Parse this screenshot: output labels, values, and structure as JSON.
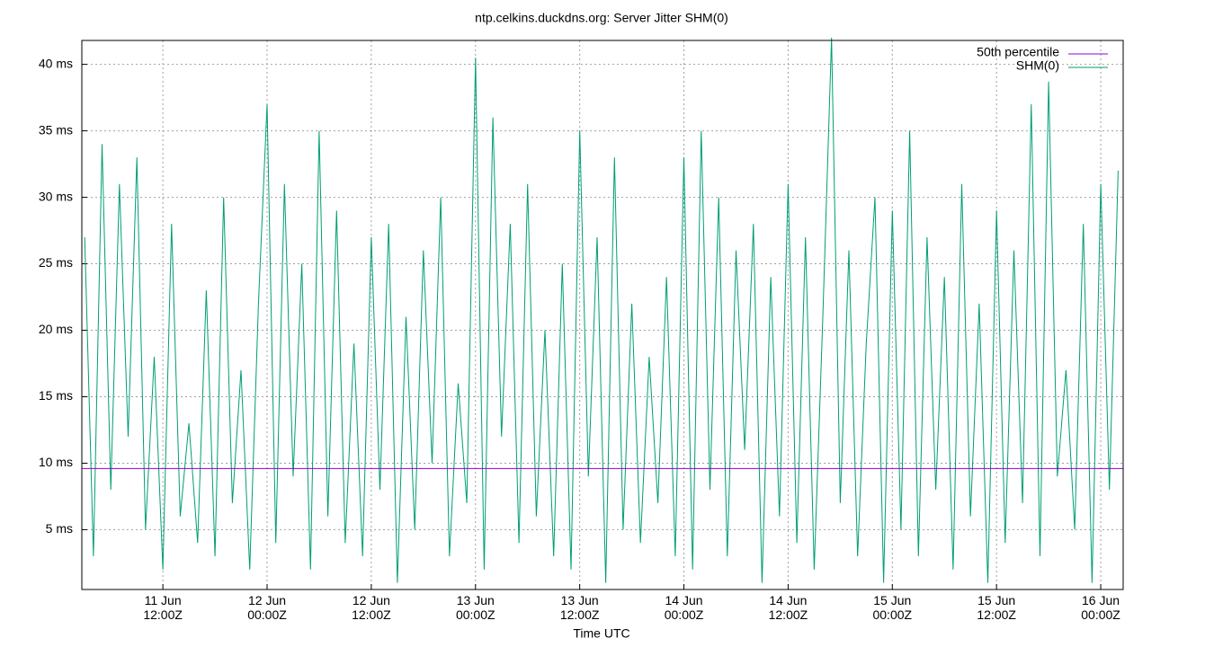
{
  "chart_data": {
    "type": "line",
    "title": "ntp.celkins.duckdns.org: Server Jitter SHM(0)",
    "xlabel": "Time UTC",
    "x": [
      "11 Jun 03:00Z",
      "11 Jun 04:00Z",
      "11 Jun 05:00Z",
      "11 Jun 06:00Z",
      "11 Jun 07:00Z",
      "11 Jun 08:00Z",
      "11 Jun 09:00Z",
      "11 Jun 10:00Z",
      "11 Jun 11:00Z",
      "11 Jun 12:00Z",
      "11 Jun 13:00Z",
      "11 Jun 14:00Z",
      "11 Jun 15:00Z",
      "11 Jun 16:00Z",
      "11 Jun 17:00Z",
      "11 Jun 18:00Z",
      "11 Jun 19:00Z",
      "11 Jun 20:00Z",
      "11 Jun 21:00Z",
      "11 Jun 22:00Z",
      "11 Jun 23:00Z",
      "12 Jun 00:00Z",
      "12 Jun 01:00Z",
      "12 Jun 02:00Z",
      "12 Jun 03:00Z",
      "12 Jun 04:00Z",
      "12 Jun 05:00Z",
      "12 Jun 06:00Z",
      "12 Jun 07:00Z",
      "12 Jun 08:00Z",
      "12 Jun 09:00Z",
      "12 Jun 10:00Z",
      "12 Jun 11:00Z",
      "12 Jun 12:00Z",
      "12 Jun 13:00Z",
      "12 Jun 14:00Z",
      "12 Jun 15:00Z",
      "12 Jun 16:00Z",
      "12 Jun 17:00Z",
      "12 Jun 18:00Z",
      "12 Jun 19:00Z",
      "12 Jun 20:00Z",
      "12 Jun 21:00Z",
      "12 Jun 22:00Z",
      "12 Jun 23:00Z",
      "13 Jun 00:00Z",
      "13 Jun 01:00Z",
      "13 Jun 02:00Z",
      "13 Jun 03:00Z",
      "13 Jun 04:00Z",
      "13 Jun 05:00Z",
      "13 Jun 06:00Z",
      "13 Jun 07:00Z",
      "13 Jun 08:00Z",
      "13 Jun 09:00Z",
      "13 Jun 10:00Z",
      "13 Jun 11:00Z",
      "13 Jun 12:00Z",
      "13 Jun 13:00Z",
      "13 Jun 14:00Z",
      "13 Jun 15:00Z",
      "13 Jun 16:00Z",
      "13 Jun 17:00Z",
      "13 Jun 18:00Z",
      "13 Jun 19:00Z",
      "13 Jun 20:00Z",
      "13 Jun 21:00Z",
      "13 Jun 22:00Z",
      "13 Jun 23:00Z",
      "14 Jun 00:00Z",
      "14 Jun 01:00Z",
      "14 Jun 02:00Z",
      "14 Jun 03:00Z",
      "14 Jun 04:00Z",
      "14 Jun 05:00Z",
      "14 Jun 06:00Z",
      "14 Jun 07:00Z",
      "14 Jun 08:00Z",
      "14 Jun 09:00Z",
      "14 Jun 10:00Z",
      "14 Jun 11:00Z",
      "14 Jun 12:00Z",
      "14 Jun 13:00Z",
      "14 Jun 14:00Z",
      "14 Jun 15:00Z",
      "14 Jun 16:00Z",
      "14 Jun 17:00Z",
      "14 Jun 18:00Z",
      "14 Jun 19:00Z",
      "14 Jun 20:00Z",
      "14 Jun 21:00Z",
      "14 Jun 22:00Z",
      "14 Jun 23:00Z",
      "15 Jun 00:00Z",
      "15 Jun 01:00Z",
      "15 Jun 02:00Z",
      "15 Jun 03:00Z",
      "15 Jun 04:00Z",
      "15 Jun 05:00Z",
      "15 Jun 06:00Z",
      "15 Jun 07:00Z",
      "15 Jun 08:00Z",
      "15 Jun 09:00Z",
      "15 Jun 10:00Z",
      "15 Jun 11:00Z",
      "15 Jun 12:00Z",
      "15 Jun 13:00Z",
      "15 Jun 14:00Z",
      "15 Jun 15:00Z",
      "15 Jun 16:00Z",
      "15 Jun 17:00Z",
      "15 Jun 18:00Z",
      "15 Jun 19:00Z",
      "15 Jun 20:00Z",
      "15 Jun 21:00Z",
      "15 Jun 22:00Z",
      "15 Jun 23:00Z",
      "16 Jun 00:00Z",
      "16 Jun 01:00Z",
      "16 Jun 02:00Z"
    ],
    "series": [
      {
        "name": "50th percentile",
        "color": "#9400d3",
        "x": [
          "11 Jun 02:40Z",
          "16 Jun 02:35Z"
        ],
        "values": [
          9.6,
          9.6
        ]
      },
      {
        "name": "SHM(0)",
        "color": "#009e73",
        "values": [
          27,
          3,
          34,
          8,
          31,
          12,
          33,
          5,
          18,
          2,
          28,
          6,
          13,
          4,
          23,
          3,
          30,
          7,
          17,
          2,
          22,
          37,
          4,
          31,
          9,
          25,
          2,
          35,
          6,
          29,
          4,
          19,
          3,
          27,
          8,
          28,
          1,
          21,
          5,
          26,
          10,
          30,
          3,
          16,
          7,
          40.5,
          2,
          36,
          12,
          28,
          4,
          31,
          6,
          20,
          3,
          25,
          2,
          35,
          9,
          27,
          1,
          33,
          5,
          22,
          4,
          18,
          7,
          24,
          3,
          33,
          2,
          35,
          8,
          30,
          3,
          26,
          11,
          28,
          1,
          24,
          6,
          31,
          4,
          27,
          2,
          21,
          42,
          7,
          26,
          3,
          19,
          30,
          1,
          29,
          5,
          35,
          3,
          27,
          8,
          24,
          2,
          31,
          6,
          22,
          1,
          29,
          4,
          26,
          7,
          37,
          3,
          38.7,
          9,
          17,
          5,
          28,
          1,
          31,
          8,
          32
        ]
      }
    ],
    "xlim": [
      "11 Jun 02:40Z",
      "16 Jun 02:35Z"
    ],
    "xticks": [
      {
        "value": "11 Jun 12:00Z",
        "label": [
          "11 Jun",
          "12:00Z"
        ]
      },
      {
        "value": "12 Jun 00:00Z",
        "label": [
          "12 Jun",
          "00:00Z"
        ]
      },
      {
        "value": "12 Jun 12:00Z",
        "label": [
          "12 Jun",
          "12:00Z"
        ]
      },
      {
        "value": "13 Jun 00:00Z",
        "label": [
          "13 Jun",
          "00:00Z"
        ]
      },
      {
        "value": "13 Jun 12:00Z",
        "label": [
          "13 Jun",
          "12:00Z"
        ]
      },
      {
        "value": "14 Jun 00:00Z",
        "label": [
          "14 Jun",
          "00:00Z"
        ]
      },
      {
        "value": "14 Jun 12:00Z",
        "label": [
          "14 Jun",
          "12:00Z"
        ]
      },
      {
        "value": "15 Jun 00:00Z",
        "label": [
          "15 Jun",
          "00:00Z"
        ]
      },
      {
        "value": "15 Jun 12:00Z",
        "label": [
          "15 Jun",
          "12:00Z"
        ]
      },
      {
        "value": "16 Jun 00:00Z",
        "label": [
          "16 Jun",
          "00:00Z"
        ]
      }
    ],
    "ylim": [
      0.5,
      41.8
    ],
    "yticks": [
      {
        "value": 5,
        "label": "5 ms"
      },
      {
        "value": 10,
        "label": "10 ms"
      },
      {
        "value": 15,
        "label": "15 ms"
      },
      {
        "value": 20,
        "label": "20 ms"
      },
      {
        "value": 25,
        "label": "25 ms"
      },
      {
        "value": 30,
        "label": "30 ms"
      },
      {
        "value": 35,
        "label": "35 ms"
      },
      {
        "value": 40,
        "label": "40 ms"
      }
    ],
    "grid": true,
    "legend": "top-right"
  }
}
